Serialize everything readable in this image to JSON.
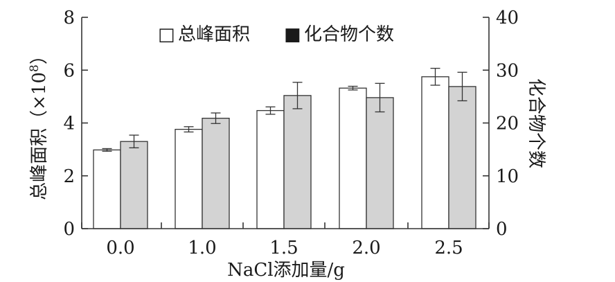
{
  "chart_data": {
    "type": "bar",
    "categories": [
      "0.0",
      "1.0",
      "1.5",
      "2.0",
      "2.5"
    ],
    "xlabel": "NaCl添加量/g",
    "ylabel_left_main": "总峰面积（×10",
    "ylabel_left_exp": "8",
    "ylabel_left_close": "）",
    "ylabel_right": "化合物个数",
    "ylim_left": [
      0,
      8
    ],
    "ylim_right": [
      0,
      40
    ],
    "yticks_left": [
      "0",
      "2",
      "4",
      "6",
      "8"
    ],
    "yticks_right": [
      "0",
      "10",
      "20",
      "30",
      "40"
    ],
    "grid": false,
    "legend_position": "top-center",
    "series": [
      {
        "name": "总峰面积",
        "axis": "left",
        "color": "#ffffff",
        "values": [
          2.98,
          3.76,
          4.47,
          5.32,
          5.75
        ],
        "errors": [
          0.05,
          0.1,
          0.14,
          0.07,
          0.32
        ]
      },
      {
        "name": "化合物个数",
        "axis": "right",
        "color": "#d3d3d3",
        "values": [
          16.5,
          20.9,
          25.2,
          24.8,
          26.9
        ],
        "errors": [
          1.2,
          1.0,
          2.5,
          2.7,
          2.7
        ]
      }
    ],
    "legend_marks": [
      "□",
      "■"
    ]
  }
}
